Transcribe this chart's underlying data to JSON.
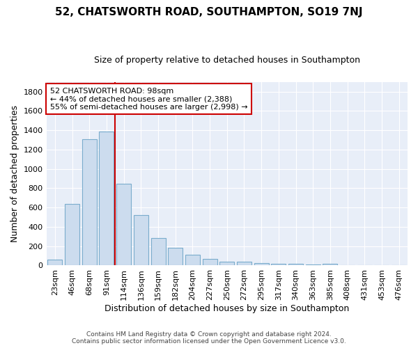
{
  "title": "52, CHATSWORTH ROAD, SOUTHAMPTON, SO19 7NJ",
  "subtitle": "Size of property relative to detached houses in Southampton",
  "xlabel": "Distribution of detached houses by size in Southampton",
  "ylabel": "Number of detached properties",
  "footnote1": "Contains HM Land Registry data © Crown copyright and database right 2024.",
  "footnote2": "Contains public sector information licensed under the Open Government Licence v3.0.",
  "bin_labels": [
    "23sqm",
    "46sqm",
    "68sqm",
    "91sqm",
    "114sqm",
    "136sqm",
    "159sqm",
    "182sqm",
    "204sqm",
    "227sqm",
    "250sqm",
    "272sqm",
    "295sqm",
    "317sqm",
    "340sqm",
    "363sqm",
    "385sqm",
    "408sqm",
    "431sqm",
    "453sqm",
    "476sqm"
  ],
  "bar_heights": [
    60,
    638,
    1305,
    1385,
    843,
    523,
    287,
    183,
    110,
    70,
    40,
    40,
    25,
    20,
    15,
    12,
    18,
    0,
    0,
    0,
    0
  ],
  "bar_color": "#ccdcee",
  "bar_edge_color": "#7aaccc",
  "vline_color": "#cc0000",
  "annotation_line1": "52 CHATSWORTH ROAD: 98sqm",
  "annotation_line2": "← 44% of detached houses are smaller (2,388)",
  "annotation_line3": "55% of semi-detached houses are larger (2,998) →",
  "annotation_box_color": "white",
  "annotation_box_edge": "#cc0000",
  "ylim": [
    0,
    1900
  ],
  "yticks": [
    0,
    200,
    400,
    600,
    800,
    1000,
    1200,
    1400,
    1600,
    1800
  ],
  "bg_color": "#ffffff",
  "plot_bg_color": "#e8eef8",
  "grid_color": "#ffffff",
  "title_fontsize": 11,
  "subtitle_fontsize": 9,
  "axis_label_fontsize": 9,
  "tick_fontsize": 8,
  "annotation_fontsize": 8
}
